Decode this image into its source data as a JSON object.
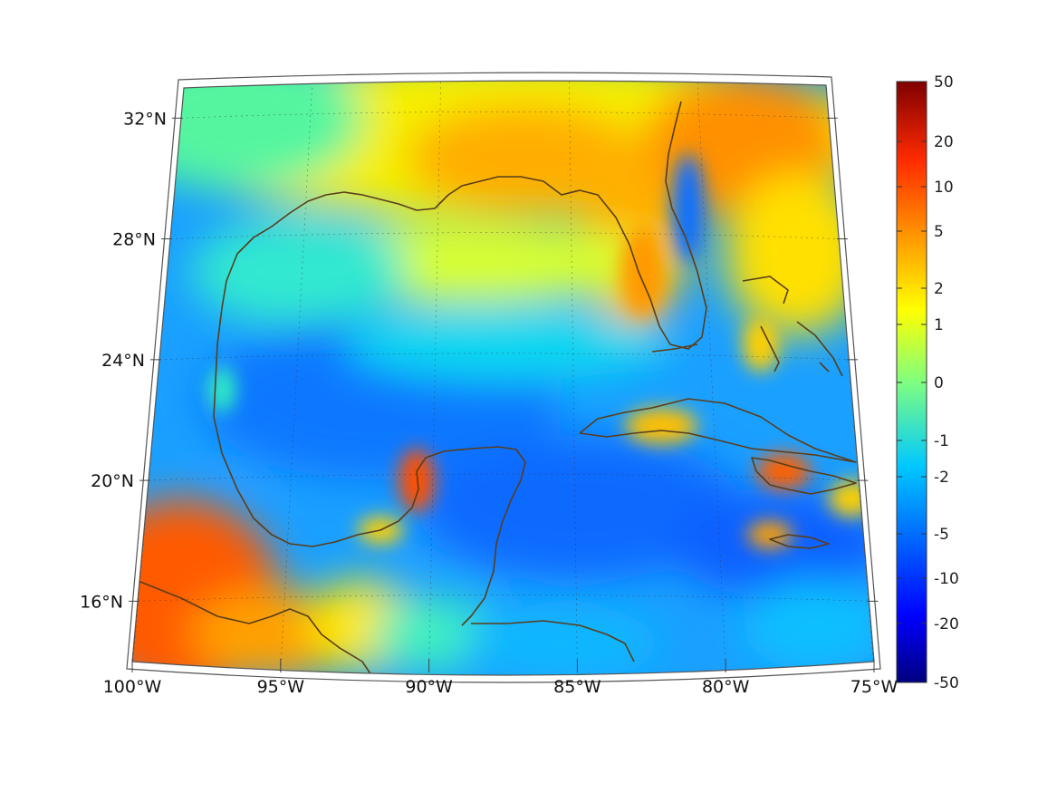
{
  "map": {
    "region": "Gulf of Mexico and Caribbean",
    "lon_range": [
      -100,
      -75
    ],
    "lat_range": [
      14,
      33
    ],
    "lon_ticks": [
      {
        "value": -100,
        "label": "100°W"
      },
      {
        "value": -95,
        "label": "95°W"
      },
      {
        "value": -90,
        "label": "90°W"
      },
      {
        "value": -85,
        "label": "85°W"
      },
      {
        "value": -80,
        "label": "80°W"
      },
      {
        "value": -75,
        "label": "75°W"
      }
    ],
    "lat_ticks": [
      {
        "value": 32,
        "label": "32°N"
      },
      {
        "value": 28,
        "label": "28°N"
      },
      {
        "value": 24,
        "label": "24°N"
      },
      {
        "value": 20,
        "label": "20°N"
      },
      {
        "value": 16,
        "label": "16°N"
      }
    ],
    "grid": true,
    "coastline_color": "#5a3d1a"
  },
  "colorbar": {
    "colormap": "jet",
    "placement": "right",
    "labels": [
      "50",
      "20",
      "10",
      "5",
      "2",
      "1",
      "0",
      "-1",
      "-2",
      "-5",
      "-10",
      "-20",
      "-50"
    ]
  }
}
